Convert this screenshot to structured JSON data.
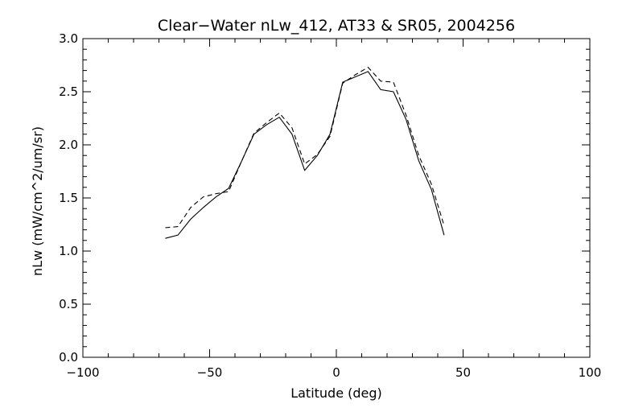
{
  "chart_data": {
    "type": "line",
    "title": "Clear−Water nLw_412, AT33 & SR05, 2004256",
    "xlabel": "Latitude (deg)",
    "ylabel": "nLw (mW/cm^2/um/sr)",
    "xlim": [
      -100,
      100
    ],
    "ylim": [
      0,
      3
    ],
    "x_ticks": [
      -100,
      -50,
      0,
      50,
      100
    ],
    "x_tick_labels": [
      "−100",
      "−50",
      "0",
      "50",
      "100"
    ],
    "y_ticks": [
      0,
      0.5,
      1,
      1.5,
      2,
      2.5,
      3
    ],
    "y_tick_labels": [
      "0.0",
      "0.5",
      "1.0",
      "1.5",
      "2.0",
      "2.5",
      "3.0"
    ],
    "grid": false,
    "series": [
      {
        "style": "solid",
        "color": "#000000",
        "x": [
          -67.5,
          -62.5,
          -57.5,
          -52.5,
          -47.5,
          -42.5,
          -37.5,
          -32.5,
          -27.5,
          -22.5,
          -17.5,
          -12.5,
          -7.5,
          -2.5,
          2.5,
          7.5,
          12.5,
          17.5,
          22.5,
          27.5,
          32.5,
          37.5,
          42.5
        ],
        "y": [
          1.12,
          1.15,
          1.3,
          1.41,
          1.51,
          1.59,
          1.84,
          2.1,
          2.19,
          2.26,
          2.1,
          1.76,
          1.9,
          2.1,
          2.59,
          2.64,
          2.69,
          2.52,
          2.5,
          2.24,
          1.85,
          1.58,
          1.15
        ]
      },
      {
        "style": "dashed",
        "color": "#000000",
        "x": [
          -67.5,
          -62.5,
          -57.5,
          -52.5,
          -47.5,
          -42.5,
          -37.5,
          -32.5,
          -27.5,
          -22.5,
          -17.5,
          -12.5,
          -7.5,
          -2.5,
          2.5,
          7.5,
          12.5,
          17.5,
          22.5,
          27.5,
          32.5,
          37.5,
          42.5
        ],
        "y": [
          1.22,
          1.23,
          1.41,
          1.51,
          1.54,
          1.56,
          1.84,
          2.11,
          2.21,
          2.3,
          2.16,
          1.82,
          1.91,
          2.08,
          2.58,
          2.66,
          2.73,
          2.6,
          2.59,
          2.28,
          1.9,
          1.63,
          1.24
        ]
      }
    ]
  }
}
